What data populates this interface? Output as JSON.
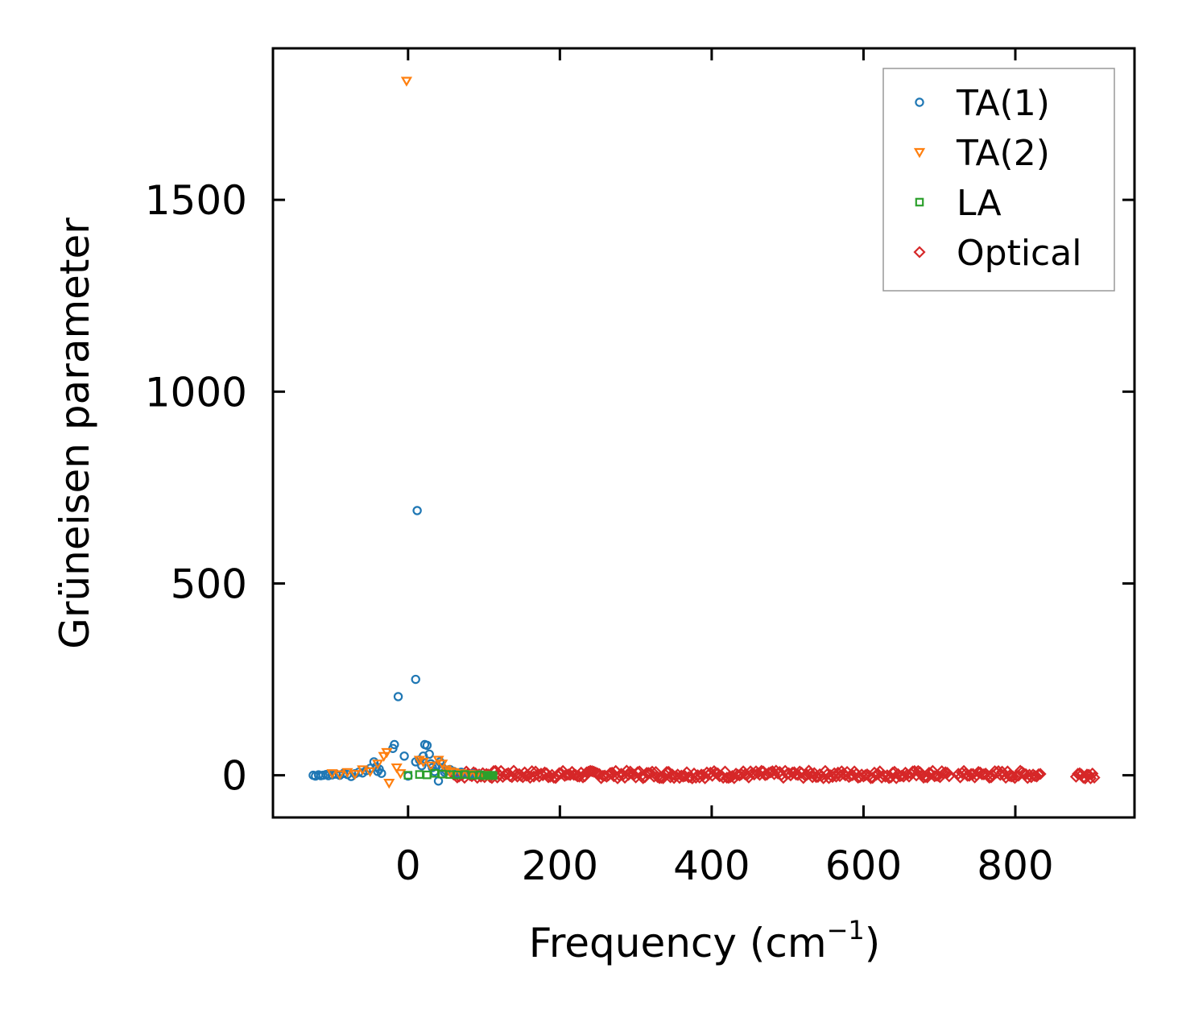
{
  "chart_data": {
    "type": "scatter",
    "title": "",
    "xlabel": "Frequency (cm",
    "xlabel_sup": "−1",
    "xlabel_close": ")",
    "ylabel": "Grüneisen parameter",
    "xlim": [
      -178,
      957
    ],
    "ylim": [
      -110,
      1895
    ],
    "xticks": [
      0,
      200,
      400,
      600,
      800
    ],
    "yticks": [
      0,
      500,
      1000,
      1500
    ],
    "grid": false,
    "legend_position": "top-right",
    "series": [
      {
        "name": "TA(1)",
        "marker": "circle",
        "color": "#1f77b4",
        "points": [
          [
            -125,
            0
          ],
          [
            -122,
            -2
          ],
          [
            -118,
            1
          ],
          [
            -115,
            -1
          ],
          [
            -112,
            0
          ],
          [
            -108,
            2
          ],
          [
            -105,
            -1
          ],
          [
            -100,
            1
          ],
          [
            -95,
            3
          ],
          [
            -90,
            0
          ],
          [
            -85,
            5
          ],
          [
            -80,
            2
          ],
          [
            -75,
            -3
          ],
          [
            -70,
            4
          ],
          [
            -65,
            8
          ],
          [
            -60,
            6
          ],
          [
            -55,
            12
          ],
          [
            -50,
            18
          ],
          [
            -45,
            35
          ],
          [
            -42,
            22
          ],
          [
            -40,
            10
          ],
          [
            -38,
            16
          ],
          [
            -35,
            5
          ],
          [
            -20,
            70
          ],
          [
            -18,
            80
          ],
          [
            -13,
            205
          ],
          [
            -5,
            50
          ],
          [
            0,
            -2
          ],
          [
            10,
            35
          ],
          [
            12,
            690
          ],
          [
            10,
            250
          ],
          [
            15,
            40
          ],
          [
            18,
            25
          ],
          [
            20,
            50
          ],
          [
            22,
            80
          ],
          [
            25,
            78
          ],
          [
            28,
            55
          ],
          [
            30,
            30
          ],
          [
            32,
            20
          ],
          [
            35,
            10
          ],
          [
            38,
            25
          ],
          [
            40,
            -15
          ],
          [
            42,
            35
          ],
          [
            45,
            20
          ],
          [
            48,
            8
          ],
          [
            50,
            12
          ],
          [
            55,
            15
          ],
          [
            60,
            10
          ],
          [
            65,
            5
          ],
          [
            70,
            8
          ],
          [
            75,
            3
          ],
          [
            80,
            2
          ],
          [
            85,
            4
          ],
          [
            90,
            1
          ],
          [
            95,
            2
          ],
          [
            100,
            0
          ]
        ]
      },
      {
        "name": "TA(2)",
        "marker": "triangle-down",
        "color": "#ff7f0e",
        "points": [
          [
            -2,
            1810
          ],
          [
            -100,
            5
          ],
          [
            -90,
            2
          ],
          [
            -80,
            8
          ],
          [
            -70,
            3
          ],
          [
            -60,
            15
          ],
          [
            -50,
            10
          ],
          [
            -40,
            30
          ],
          [
            -32,
            50
          ],
          [
            -28,
            60
          ],
          [
            -25,
            -20
          ],
          [
            -15,
            20
          ],
          [
            -10,
            5
          ],
          [
            15,
            40
          ],
          [
            20,
            35
          ],
          [
            30,
            25
          ],
          [
            40,
            40
          ],
          [
            45,
            30
          ],
          [
            50,
            15
          ],
          [
            55,
            10
          ],
          [
            60,
            8
          ],
          [
            70,
            5
          ],
          [
            80,
            3
          ],
          [
            90,
            2
          ],
          [
            100,
            1
          ],
          [
            105,
            0
          ]
        ]
      },
      {
        "name": "LA",
        "marker": "square",
        "color": "#2ca02c",
        "points": [
          [
            0,
            0
          ],
          [
            15,
            2
          ],
          [
            25,
            1
          ],
          [
            35,
            5
          ],
          [
            45,
            3
          ],
          [
            55,
            2
          ],
          [
            65,
            1
          ],
          [
            75,
            2
          ],
          [
            85,
            0
          ],
          [
            95,
            1
          ],
          [
            100,
            -1
          ],
          [
            105,
            0
          ],
          [
            110,
            0
          ],
          [
            112,
            -1
          ]
        ]
      },
      {
        "name": "Optical",
        "marker": "diamond",
        "color": "#d62728",
        "x_segments": [
          [
            60,
            715
          ],
          [
            725,
            835
          ],
          [
            880,
            905
          ]
        ],
        "y_range": [
          -8,
          12
        ]
      }
    ]
  }
}
